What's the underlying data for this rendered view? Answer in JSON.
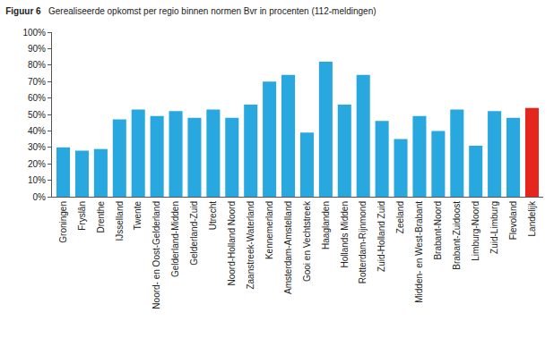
{
  "chart_data": {
    "type": "bar",
    "title": "Figuur 6",
    "subtitle": "Gerealiseerde opkomst per regio binnen normen Bvr in procenten (112-meldingen)",
    "categories": [
      "Groningen",
      "Fryslân",
      "Drenthe",
      "IJsselland",
      "Twente",
      "Noord- en Oost-Gelderland",
      "Gelderland-Midden",
      "Gelderland-Zuid",
      "Utrecht",
      "Noord-Holland Noord",
      "Zaanstreek-Waterland",
      "Kennemerland",
      "Amsterdam-Amstelland",
      "Gooi en Vechtstreek",
      "Haaglanden",
      "Hollands Midden",
      "Rotterdam-Rijnmond",
      "Zuid-Holland Zuid",
      "Zeeland",
      "Midden- en West-Brabant",
      "Brabant-Noord",
      "Brabant-Zuidoost",
      "Limburg-Noord",
      "Zuid-Limburg",
      "Flevoland",
      "Landelijk"
    ],
    "values": [
      30,
      28,
      29,
      47,
      53,
      49,
      52,
      48,
      53,
      48,
      56,
      70,
      74,
      39,
      82,
      56,
      74,
      46,
      35,
      49,
      40,
      53,
      31,
      52,
      48,
      54
    ],
    "colors": [
      "#29a8e0",
      "#29a8e0",
      "#29a8e0",
      "#29a8e0",
      "#29a8e0",
      "#29a8e0",
      "#29a8e0",
      "#29a8e0",
      "#29a8e0",
      "#29a8e0",
      "#29a8e0",
      "#29a8e0",
      "#29a8e0",
      "#29a8e0",
      "#29a8e0",
      "#29a8e0",
      "#29a8e0",
      "#29a8e0",
      "#29a8e0",
      "#29a8e0",
      "#29a8e0",
      "#29a8e0",
      "#29a8e0",
      "#29a8e0",
      "#29a8e0",
      "#e5261c"
    ],
    "ylim": [
      0,
      100
    ],
    "yticks": [
      {
        "value": 0,
        "label": "0%"
      },
      {
        "value": 10,
        "label": "10%"
      },
      {
        "value": 20,
        "label": "20%"
      },
      {
        "value": 30,
        "label": "30%"
      },
      {
        "value": 40,
        "label": "40%"
      },
      {
        "value": 50,
        "label": "50%"
      },
      {
        "value": 60,
        "label": "60%"
      },
      {
        "value": 70,
        "label": "70%"
      },
      {
        "value": 80,
        "label": "80%"
      },
      {
        "value": 90,
        "label": "90%"
      },
      {
        "value": 100,
        "label": "100%"
      }
    ],
    "grid": false
  }
}
